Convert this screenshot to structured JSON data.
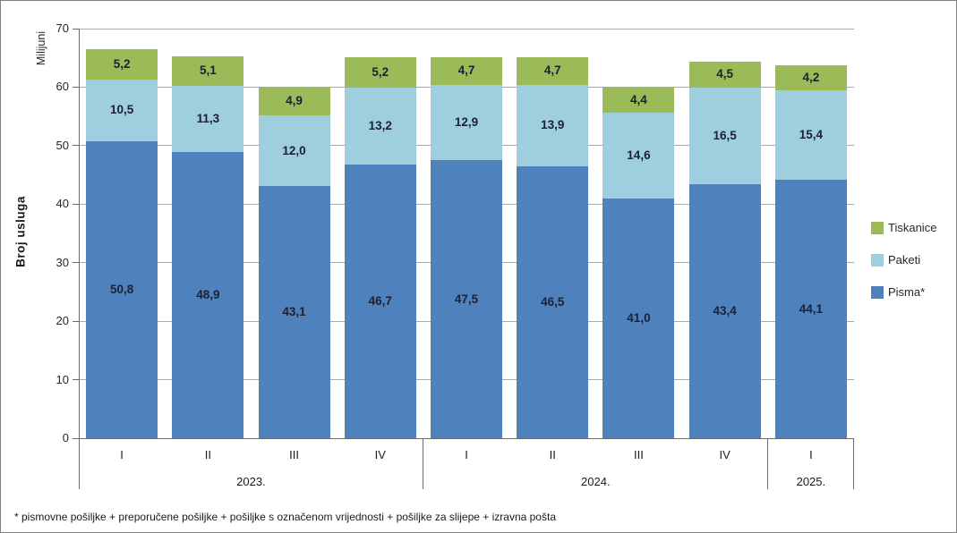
{
  "chart_data": {
    "type": "bar",
    "stacked": true,
    "title": "",
    "ylabel": "Broj usluga",
    "y_unit_label": "Milijuni",
    "footnote": "* pismovne pošiljke + preporučene pošiljke + pošiljke s označenom vrijednosti + pošiljke za slijepe + izravna pošta",
    "ylim": [
      0,
      70
    ],
    "y_ticks": [
      0,
      10,
      20,
      30,
      40,
      50,
      60,
      70
    ],
    "grid": true,
    "legend_position": "right",
    "quarter_labels": [
      "I",
      "II",
      "III",
      "IV",
      "I",
      "II",
      "III",
      "IV",
      "I"
    ],
    "year_groups": [
      {
        "year": "2023.",
        "count": 4
      },
      {
        "year": "2024.",
        "count": 4
      },
      {
        "year": "2025.",
        "count": 1
      }
    ],
    "series": [
      {
        "name": "Pisma*",
        "color": "#4F81BD",
        "values": [
          50.8,
          48.9,
          43.1,
          46.7,
          47.5,
          46.5,
          41.0,
          43.4,
          44.1
        ]
      },
      {
        "name": "Paketi",
        "color": "#9FCEDF",
        "values": [
          10.5,
          11.3,
          12.0,
          13.2,
          12.9,
          13.9,
          14.6,
          16.5,
          15.4
        ]
      },
      {
        "name": "Tiskanice",
        "color": "#9BBB59",
        "values": [
          5.2,
          5.1,
          4.9,
          5.2,
          4.7,
          4.7,
          4.4,
          4.5,
          4.2
        ]
      }
    ],
    "legend": {
      "items": [
        {
          "label": "Tiskanice",
          "color": "#9BBB59"
        },
        {
          "label": "Paketi",
          "color": "#9FCEDF"
        },
        {
          "label": "Pisma*",
          "color": "#4F81BD"
        }
      ]
    }
  }
}
